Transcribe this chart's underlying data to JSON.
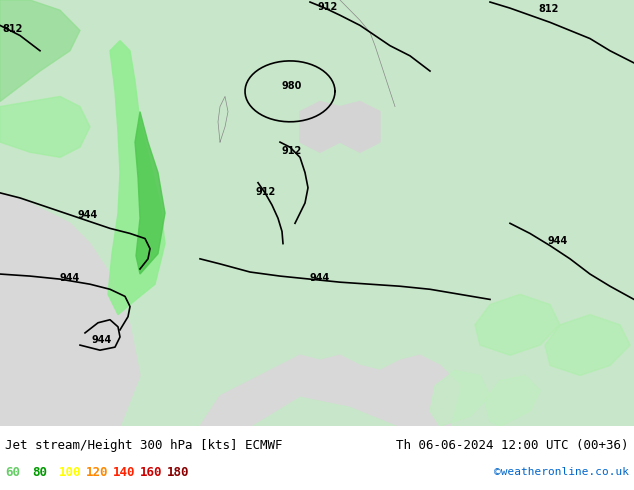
{
  "title_left": "Jet stream/Height 300 hPa [kts] ECMWF",
  "title_right": "Th 06-06-2024 12:00 UTC (00+36)",
  "copyright": "©weatheronline.co.uk",
  "legend_values": [
    60,
    80,
    100,
    120,
    140,
    160,
    180
  ],
  "legend_colors": [
    "#00cc00",
    "#00aa00",
    "#ffcc00",
    "#ff6600",
    "#ff0000",
    "#cc0000",
    "#990000"
  ],
  "bg_color": "#e8f5e9",
  "land_color": "#c8e6c9",
  "sea_color": "#e0e0e0",
  "contour_color": "#000000",
  "label_size": 9,
  "bottom_bar_color": "#d3d3d3",
  "fig_width": 6.34,
  "fig_height": 4.9
}
